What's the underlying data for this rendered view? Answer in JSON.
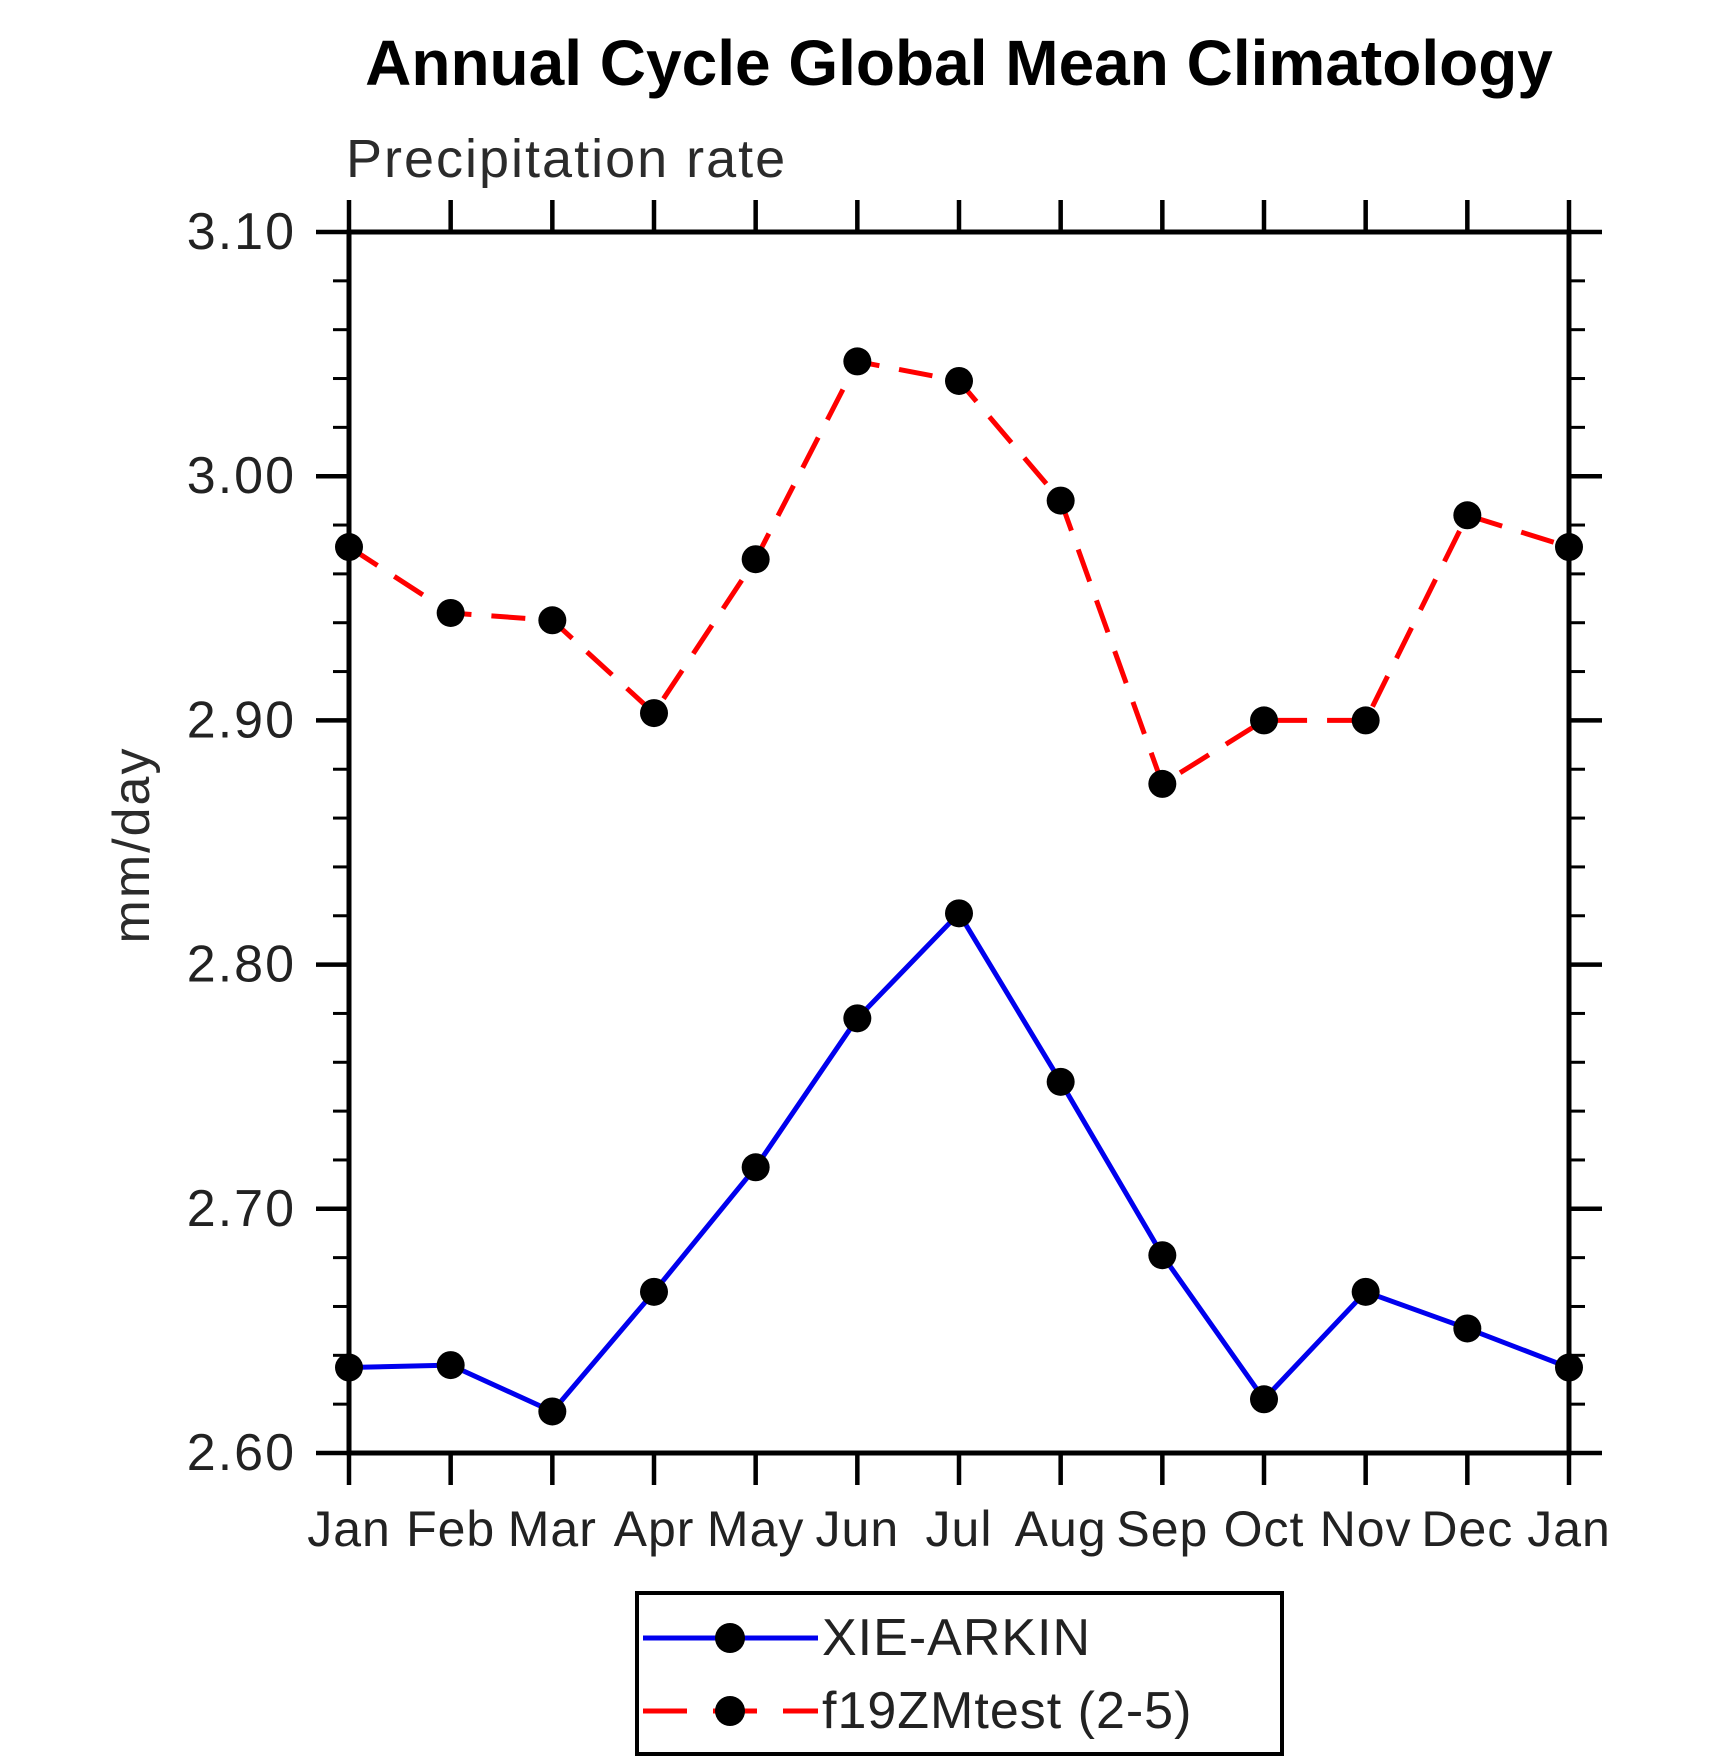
{
  "title": "Annual Cycle Global Mean Climatology",
  "subtitle": "Precipitation rate",
  "y_axis": {
    "label": "mm/day",
    "tick_labels": [
      "3.10",
      "3.00",
      "2.90",
      "2.80",
      "2.70",
      "2.60"
    ]
  },
  "x_axis": {
    "tick_labels": [
      "Jan",
      "Feb",
      "Mar",
      "Apr",
      "May",
      "Jun",
      "Jul",
      "Aug",
      "Sep",
      "Oct",
      "Nov",
      "Dec",
      "Jan"
    ]
  },
  "legend": {
    "entries": [
      {
        "label": "XIE-ARKIN",
        "line_color": "#0000ee",
        "line_style": "solid",
        "marker_color": "#000000"
      },
      {
        "label": "f19ZMtest (2-5)",
        "line_color": "#ff0000",
        "line_style": "dashed",
        "marker_color": "#000000"
      }
    ]
  },
  "colors": {
    "series1": "#0000ee",
    "series2": "#ff0000",
    "marker": "#000000",
    "axis": "#000000",
    "background": "#ffffff"
  },
  "chart_data": {
    "type": "line",
    "title": "Annual Cycle Global Mean Climatology",
    "subtitle": "Precipitation rate",
    "ylabel": "mm/day",
    "categories": [
      "Jan",
      "Feb",
      "Mar",
      "Apr",
      "May",
      "Jun",
      "Jul",
      "Aug",
      "Sep",
      "Oct",
      "Nov",
      "Dec",
      "Jan"
    ],
    "series": [
      {
        "name": "XIE-ARKIN",
        "color": "#0000ee",
        "line_style": "solid",
        "marker": "black-dot",
        "values": [
          2.635,
          2.636,
          2.617,
          2.666,
          2.717,
          2.778,
          2.821,
          2.752,
          2.681,
          2.622,
          2.666,
          2.651,
          2.635
        ]
      },
      {
        "name": "f19ZMtest (2-5)",
        "color": "#ff0000",
        "line_style": "dashed",
        "marker": "black-dot",
        "values": [
          2.971,
          2.944,
          2.941,
          2.903,
          2.966,
          3.047,
          3.039,
          2.99,
          2.874,
          2.9,
          2.9,
          2.984,
          2.971
        ]
      }
    ],
    "ylim": [
      2.6,
      3.1
    ],
    "y_tick_labels": [
      "3.10",
      "3.00",
      "2.90",
      "2.80",
      "2.70",
      "2.60"
    ],
    "y_major_step": 0.1,
    "y_minor_step": 0.02,
    "grid": false,
    "legend_position": "bottom-center"
  }
}
